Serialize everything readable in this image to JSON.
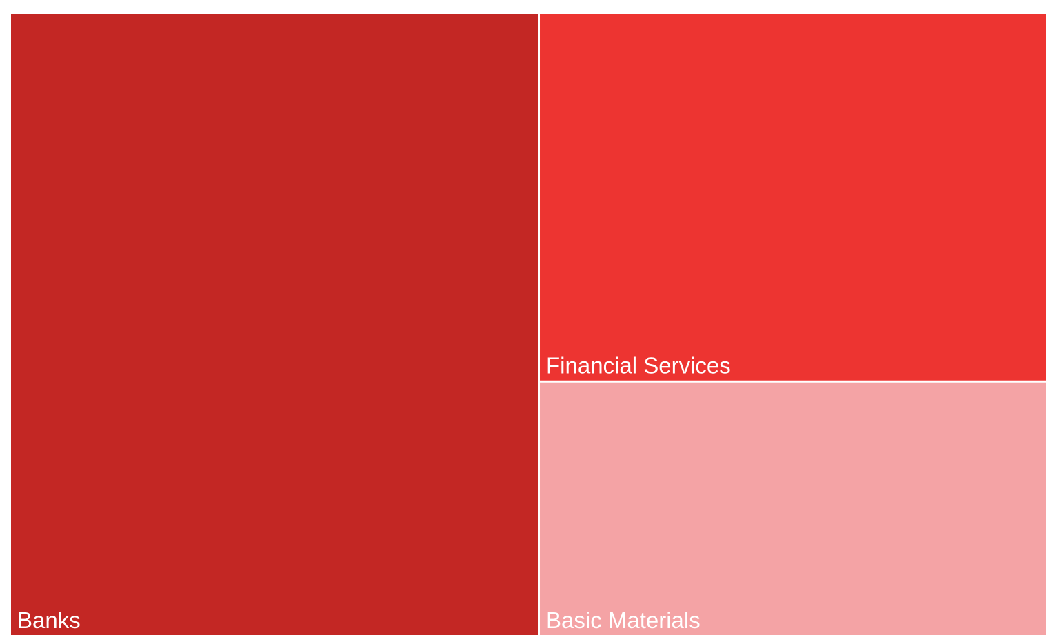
{
  "chart_data": {
    "type": "treemap",
    "categories": [
      "Banks",
      "Financial Services",
      "Basic Materials"
    ],
    "values": [
      51,
      29,
      20
    ],
    "colors": [
      "#c32724",
      "#ed3431",
      "#f4a3a5"
    ]
  }
}
